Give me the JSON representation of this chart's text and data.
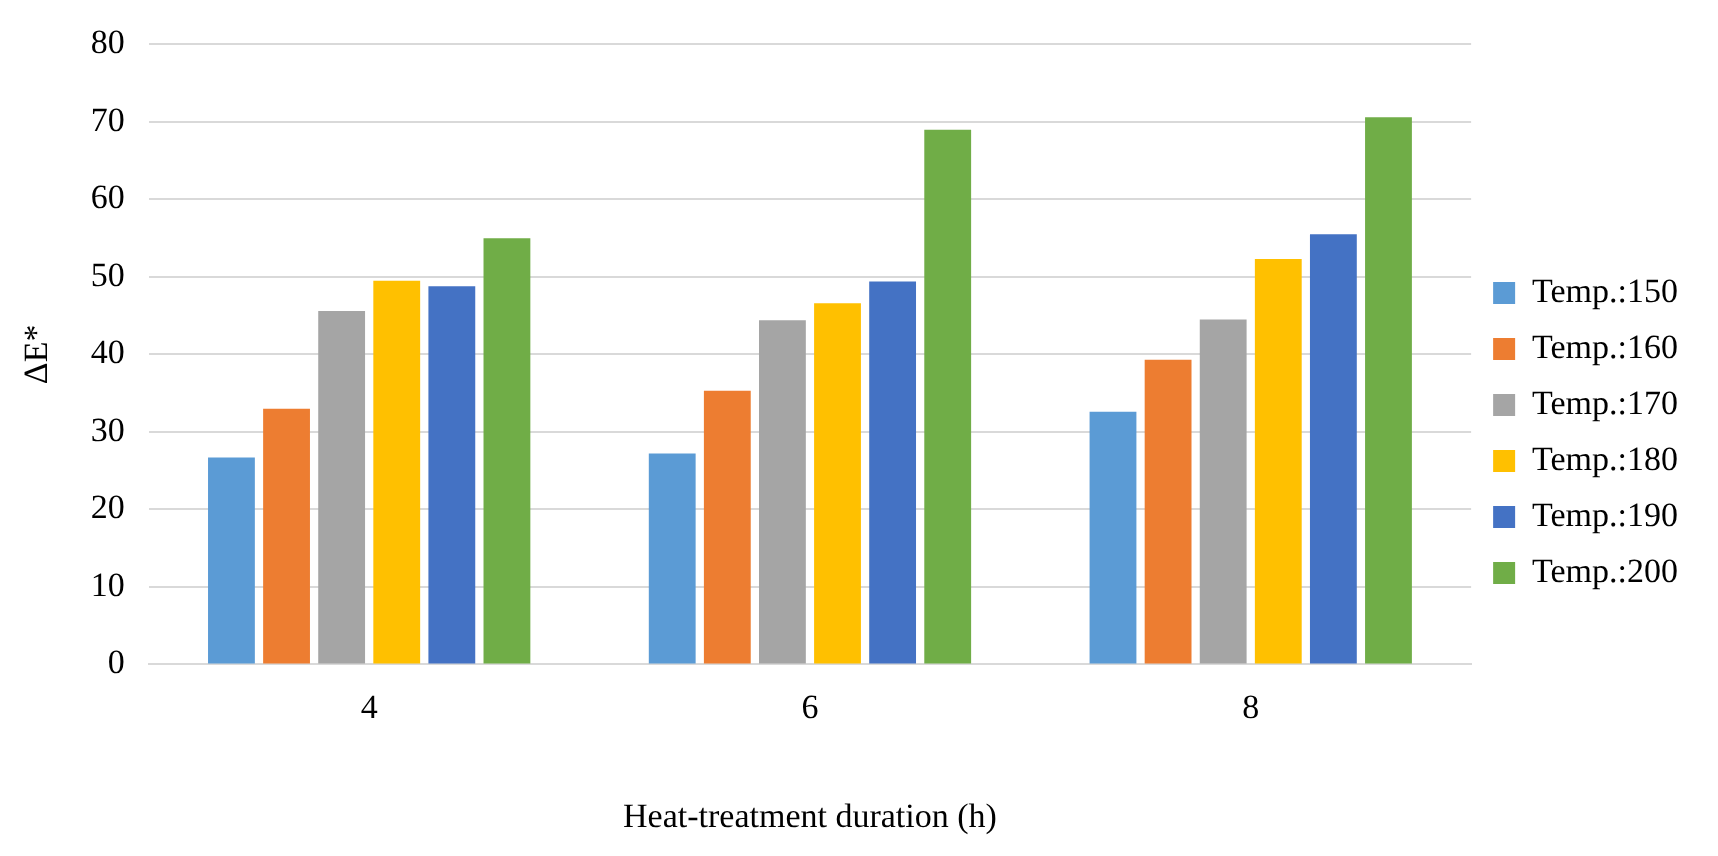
{
  "chart_data": {
    "type": "bar",
    "xlabel": "Heat-treatment duration (h)",
    "ylabel": "ΔE*",
    "categories": [
      "4",
      "6",
      "8"
    ],
    "series": [
      {
        "name": "Temp.:150",
        "color": "#5b9bd5",
        "values": [
          26.7,
          27.2,
          32.6
        ]
      },
      {
        "name": "Temp.:160",
        "color": "#ed7d31",
        "values": [
          33,
          35.3,
          39.3
        ]
      },
      {
        "name": "Temp.:170",
        "color": "#a5a5a5",
        "values": [
          45.6,
          44.4,
          44.5
        ]
      },
      {
        "name": "Temp.:180",
        "color": "#ffc000",
        "values": [
          49.5,
          46.6,
          52.3
        ]
      },
      {
        "name": "Temp.:190",
        "color": "#4472c4",
        "values": [
          48.8,
          49.4,
          55.5
        ]
      },
      {
        "name": "Temp.:200",
        "color": "#70ad47",
        "values": [
          55,
          69,
          70.6
        ]
      }
    ],
    "ylim": [
      0,
      80
    ],
    "yticks": [
      0,
      10,
      20,
      30,
      40,
      50,
      60,
      70,
      80
    ],
    "grid": "y",
    "legend": "right"
  }
}
